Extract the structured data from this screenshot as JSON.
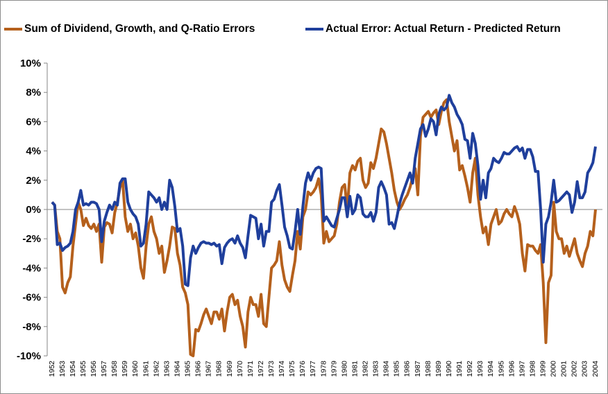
{
  "chart_data": {
    "type": "line",
    "categories": [
      "1952",
      null,
      null,
      null,
      "1953",
      null,
      null,
      null,
      "1954",
      null,
      null,
      null,
      "1955",
      null,
      null,
      null,
      "1956",
      null,
      null,
      null,
      "1957",
      null,
      null,
      null,
      "1958",
      null,
      null,
      null,
      "1959",
      null,
      null,
      null,
      "1960",
      null,
      null,
      null,
      "1961",
      null,
      null,
      null,
      "1962",
      null,
      null,
      null,
      "1963",
      null,
      null,
      null,
      "1964",
      null,
      null,
      null,
      "1965",
      null,
      null,
      null,
      "1966",
      null,
      null,
      null,
      "1967",
      null,
      null,
      null,
      "1968",
      null,
      null,
      null,
      "1969",
      null,
      null,
      null,
      "1970",
      null,
      null,
      null,
      "1971",
      null,
      null,
      null,
      "1972",
      null,
      null,
      null,
      "1973",
      null,
      null,
      null,
      "1974",
      null,
      null,
      null,
      "1975",
      null,
      null,
      null,
      "1976",
      null,
      null,
      null,
      "1977",
      null,
      null,
      null,
      "1978",
      null,
      null,
      null,
      "1979",
      null,
      null,
      null,
      "1980",
      null,
      null,
      null,
      "1981",
      null,
      null,
      null,
      "1982",
      null,
      null,
      null,
      "1983",
      null,
      null,
      null,
      "1984",
      null,
      null,
      null,
      "1985",
      null,
      null,
      null,
      "1986",
      null,
      null,
      null,
      "1987",
      null,
      null,
      null,
      "1988",
      null,
      null,
      null,
      "1989",
      null,
      null,
      null,
      "1990",
      null,
      null,
      null,
      "1991",
      null,
      null,
      null,
      "1992",
      null,
      null,
      null,
      "1993",
      null,
      null,
      null,
      "1994",
      null,
      null,
      null,
      "1995",
      null,
      null,
      null,
      "1996",
      null,
      null,
      null,
      "1997",
      null,
      null,
      null,
      "1998",
      null,
      null,
      null,
      "1999",
      null,
      null,
      null,
      "2000",
      null,
      null,
      null,
      "2001",
      null,
      null,
      null,
      "2002",
      null,
      null,
      null,
      "2003",
      null,
      null,
      null,
      "2004"
    ],
    "series": [
      {
        "name": "Sum of Dividend, Growth, and Q-Ratio Errors",
        "color": "#b5601c",
        "values": [
          0.5,
          0.3,
          -1.5,
          -2.0,
          -5.3,
          -5.7,
          -5.0,
          -4.6,
          -2.5,
          -1.0,
          0.5,
          0.0,
          -1.1,
          -0.6,
          -1.1,
          -1.3,
          -1.0,
          -1.5,
          -1.0,
          -3.6,
          -1.2,
          -0.9,
          -1.0,
          -1.6,
          -0.2,
          0.5,
          1.5,
          2.0,
          -0.5,
          -1.5,
          -1.0,
          -2.0,
          -1.6,
          -2.5,
          -4.0,
          -4.7,
          -2.5,
          -1.0,
          -0.5,
          -1.5,
          -2.0,
          -3.0,
          -2.5,
          -4.3,
          -3.5,
          -2.5,
          -1.2,
          -1.3,
          -3.0,
          -3.8,
          -5.3,
          -5.7,
          -6.5,
          -9.9,
          -10.0,
          -8.2,
          -8.3,
          -7.8,
          -7.2,
          -6.8,
          -7.3,
          -7.8,
          -7.0,
          -7.0,
          -7.5,
          -6.8,
          -8.3,
          -7.0,
          -6.0,
          -5.8,
          -6.5,
          -6.2,
          -7.3,
          -8.0,
          -9.4,
          -7.0,
          -6.0,
          -6.5,
          -6.5,
          -7.3,
          -5.8,
          -7.8,
          -8.0,
          -6.0,
          -4.0,
          -3.8,
          -3.5,
          -2.2,
          -3.8,
          -4.8,
          -5.3,
          -5.6,
          -4.5,
          -3.5,
          -1.5,
          -2.7,
          -0.5,
          0.0,
          1.2,
          1.0,
          1.2,
          1.5,
          2.1,
          1.0,
          -2.3,
          -1.5,
          -2.2,
          -2.0,
          -1.8,
          -1.0,
          0.5,
          1.5,
          1.7,
          0.0,
          2.5,
          3.0,
          2.7,
          3.3,
          3.5,
          2.0,
          1.5,
          1.8,
          3.2,
          2.8,
          3.5,
          4.5,
          5.5,
          5.3,
          4.5,
          3.5,
          2.5,
          1.3,
          0.5,
          0.0,
          0.3,
          0.7,
          1.0,
          1.5,
          2.2,
          2.8,
          1.0,
          5.0,
          6.3,
          6.5,
          6.7,
          6.3,
          6.6,
          6.8,
          5.8,
          6.7,
          7.3,
          7.5,
          6.0,
          5.0,
          4.0,
          4.7,
          2.7,
          3.0,
          2.3,
          1.5,
          0.5,
          2.5,
          3.5,
          1.0,
          -0.5,
          -1.6,
          -1.2,
          -2.4,
          -1.0,
          -0.5,
          0.0,
          -1.0,
          -0.8,
          -0.3,
          0.0,
          -0.3,
          -0.5,
          0.2,
          -0.3,
          -1.0,
          -3.0,
          -4.2,
          -2.4,
          -2.5,
          -2.5,
          -2.8,
          -3.0,
          -2.4,
          -5.0,
          -9.1,
          -5.0,
          -4.5,
          0.5,
          -1.5,
          -2.0,
          -2.0,
          -3.0,
          -2.5,
          -3.2,
          -2.6,
          -2.0,
          -3.0,
          -3.5,
          -3.9,
          -3.0,
          -2.5,
          -1.5,
          -1.8,
          0.0
        ]
      },
      {
        "name": "Actual Error: Actual Return - Predicted Return",
        "color": "#1f3f9c",
        "values": [
          0.5,
          0.3,
          -2.4,
          -2.3,
          -2.8,
          -2.6,
          -2.5,
          -2.3,
          -1.5,
          0.0,
          0.5,
          1.3,
          0.3,
          0.4,
          0.3,
          0.5,
          0.5,
          0.4,
          0.0,
          -2.2,
          -0.8,
          -0.2,
          0.3,
          0.0,
          0.5,
          0.3,
          1.8,
          2.1,
          2.1,
          0.5,
          0.0,
          -0.3,
          -0.5,
          -1.0,
          -2.5,
          -2.3,
          -1.0,
          1.2,
          1.0,
          0.8,
          0.5,
          0.8,
          0.0,
          0.5,
          0.0,
          2.0,
          1.5,
          0.2,
          -1.5,
          -1.3,
          -2.5,
          -5.1,
          -5.2,
          -3.3,
          -2.5,
          -3.0,
          -2.6,
          -2.3,
          -2.2,
          -2.3,
          -2.3,
          -2.4,
          -2.3,
          -2.5,
          -2.4,
          -3.7,
          -2.6,
          -2.3,
          -2.1,
          -2.0,
          -2.3,
          -1.8,
          -2.3,
          -2.6,
          -3.3,
          -1.8,
          -0.4,
          -0.5,
          -0.6,
          -2.0,
          -1.0,
          -2.5,
          -1.5,
          -1.5,
          0.5,
          0.7,
          1.3,
          1.7,
          0.3,
          -1.2,
          -1.8,
          -2.6,
          -2.7,
          -1.5,
          0.0,
          -1.7,
          0.2,
          1.8,
          2.5,
          2.0,
          2.5,
          2.8,
          2.9,
          2.8,
          -0.8,
          -0.5,
          -0.8,
          -1.1,
          -1.2,
          -0.6,
          0.0,
          0.8,
          0.8,
          -0.5,
          0.9,
          -0.3,
          0.0,
          1.0,
          0.8,
          -0.3,
          -0.5,
          -0.5,
          -0.2,
          -0.8,
          -0.2,
          1.5,
          1.9,
          1.5,
          1.0,
          -1.0,
          -0.9,
          -1.3,
          -0.5,
          0.4,
          1.0,
          1.5,
          2.0,
          2.5,
          1.8,
          3.5,
          4.5,
          5.5,
          5.8,
          5.0,
          5.5,
          6.2,
          6.0,
          5.1,
          6.5,
          7.0,
          6.8,
          7.0,
          7.8,
          7.3,
          7.0,
          6.5,
          6.2,
          5.8,
          4.8,
          4.7,
          3.5,
          5.2,
          4.5,
          3.0,
          0.7,
          2.0,
          0.8,
          2.5,
          2.8,
          3.5,
          3.3,
          3.2,
          3.5,
          3.9,
          3.8,
          3.8,
          4.0,
          4.2,
          4.3,
          4.0,
          4.2,
          3.5,
          4.1,
          4.1,
          3.6,
          2.6,
          2.6,
          0.0,
          -3.6,
          -1.0,
          -0.5,
          0.5,
          2.0,
          0.5,
          0.6,
          0.8,
          1.0,
          1.2,
          1.0,
          -0.2,
          0.5,
          1.9,
          0.8,
          0.8,
          1.2,
          2.5,
          2.8,
          3.2,
          4.3
        ]
      }
    ],
    "ylim": [
      -10,
      10
    ],
    "yticks": [
      {
        "value": 10,
        "label": "10%"
      },
      {
        "value": 8,
        "label": "8%"
      },
      {
        "value": 6,
        "label": "6%"
      },
      {
        "value": 4,
        "label": "4%"
      },
      {
        "value": 2,
        "label": "2%"
      },
      {
        "value": 0,
        "label": "0%"
      },
      {
        "value": -2,
        "label": "-2%"
      },
      {
        "value": -4,
        "label": "-4%"
      },
      {
        "value": -6,
        "label": "-6%"
      },
      {
        "value": -8,
        "label": "-8%"
      },
      {
        "value": -10,
        "label": "-10%"
      }
    ],
    "grid": false,
    "legend": "top"
  }
}
